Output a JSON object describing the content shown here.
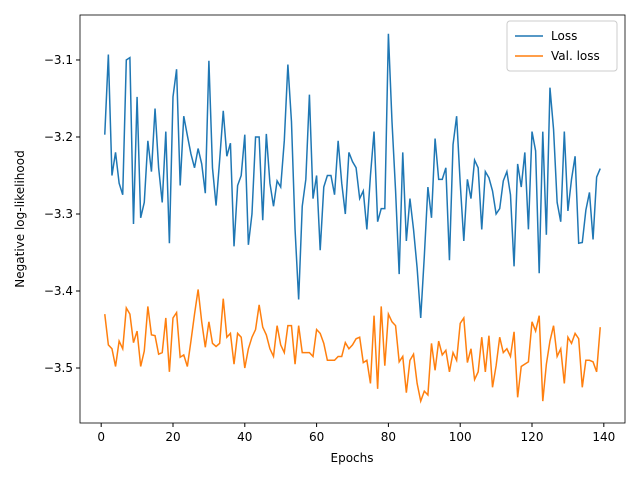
{
  "chart_data": {
    "type": "line",
    "xlabel": "Epochs",
    "ylabel": "Negative log-likelihood",
    "x": [
      1,
      2,
      3,
      4,
      5,
      6,
      7,
      8,
      9,
      10,
      11,
      12,
      13,
      14,
      15,
      16,
      17,
      18,
      19,
      20,
      21,
      22,
      23,
      24,
      25,
      26,
      27,
      28,
      29,
      30,
      31,
      32,
      33,
      34,
      35,
      36,
      37,
      38,
      39,
      40,
      41,
      42,
      43,
      44,
      45,
      46,
      47,
      48,
      49,
      50,
      51,
      52,
      53,
      54,
      55,
      56,
      57,
      58,
      59,
      60,
      61,
      62,
      63,
      64,
      65,
      66,
      67,
      68,
      69,
      70,
      71,
      72,
      73,
      74,
      75,
      76,
      77,
      78,
      79,
      80,
      81,
      82,
      83,
      84,
      85,
      86,
      87,
      88,
      89,
      90,
      91,
      92,
      93,
      94,
      95,
      96,
      97,
      98,
      99,
      100,
      101,
      102,
      103,
      104,
      105,
      106,
      107,
      108,
      109,
      110,
      111,
      112,
      113,
      114,
      115,
      116,
      117,
      118,
      119,
      120,
      121,
      122,
      123,
      124,
      125,
      126,
      127,
      128,
      129,
      130,
      131,
      132,
      133,
      134,
      135,
      136,
      137,
      138,
      139
    ],
    "series": [
      {
        "name": "Loss",
        "color": "#1f77b4",
        "values": [
          -3.197,
          -3.093,
          -3.25,
          -3.22,
          -3.26,
          -3.275,
          -3.1,
          -3.097,
          -3.313,
          -3.148,
          -3.305,
          -3.285,
          -3.205,
          -3.245,
          -3.163,
          -3.24,
          -3.285,
          -3.193,
          -3.338,
          -3.148,
          -3.112,
          -3.263,
          -3.173,
          -3.198,
          -3.222,
          -3.24,
          -3.215,
          -3.235,
          -3.273,
          -3.101,
          -3.24,
          -3.289,
          -3.23,
          -3.166,
          -3.225,
          -3.208,
          -3.342,
          -3.263,
          -3.25,
          -3.197,
          -3.34,
          -3.3,
          -3.2,
          -3.2,
          -3.308,
          -3.196,
          -3.26,
          -3.29,
          -3.257,
          -3.265,
          -3.205,
          -3.106,
          -3.18,
          -3.32,
          -3.411,
          -3.29,
          -3.255,
          -3.145,
          -3.28,
          -3.25,
          -3.347,
          -3.265,
          -3.25,
          -3.25,
          -3.275,
          -3.205,
          -3.26,
          -3.3,
          -3.22,
          -3.232,
          -3.24,
          -3.28,
          -3.27,
          -3.32,
          -3.25,
          -3.193,
          -3.31,
          -3.293,
          -3.293,
          -3.066,
          -3.18,
          -3.27,
          -3.378,
          -3.22,
          -3.335,
          -3.28,
          -3.32,
          -3.37,
          -3.435,
          -3.355,
          -3.265,
          -3.305,
          -3.202,
          -3.255,
          -3.255,
          -3.24,
          -3.36,
          -3.21,
          -3.173,
          -3.26,
          -3.335,
          -3.255,
          -3.28,
          -3.23,
          -3.24,
          -3.32,
          -3.245,
          -3.253,
          -3.27,
          -3.3,
          -3.293,
          -3.257,
          -3.245,
          -3.275,
          -3.368,
          -3.235,
          -3.265,
          -3.22,
          -3.32,
          -3.193,
          -3.218,
          -3.377,
          -3.193,
          -3.327,
          -3.136,
          -3.19,
          -3.285,
          -3.31,
          -3.193,
          -3.296,
          -3.255,
          -3.225,
          -3.338,
          -3.337,
          -3.295,
          -3.272,
          -3.333,
          -3.252,
          -3.241
        ]
      },
      {
        "name": "Val. loss",
        "color": "#ff7f0e",
        "values": [
          -3.43,
          -3.47,
          -3.475,
          -3.498,
          -3.465,
          -3.475,
          -3.422,
          -3.43,
          -3.467,
          -3.452,
          -3.498,
          -3.478,
          -3.42,
          -3.457,
          -3.458,
          -3.482,
          -3.48,
          -3.435,
          -3.505,
          -3.435,
          -3.428,
          -3.486,
          -3.483,
          -3.498,
          -3.465,
          -3.43,
          -3.398,
          -3.44,
          -3.473,
          -3.44,
          -3.468,
          -3.472,
          -3.468,
          -3.41,
          -3.46,
          -3.455,
          -3.495,
          -3.455,
          -3.46,
          -3.5,
          -3.475,
          -3.46,
          -3.45,
          -3.418,
          -3.447,
          -3.457,
          -3.475,
          -3.485,
          -3.445,
          -3.47,
          -3.48,
          -3.445,
          -3.445,
          -3.495,
          -3.445,
          -3.48,
          -3.48,
          -3.48,
          -3.485,
          -3.45,
          -3.455,
          -3.468,
          -3.49,
          -3.49,
          -3.49,
          -3.485,
          -3.485,
          -3.467,
          -3.475,
          -3.47,
          -3.462,
          -3.46,
          -3.493,
          -3.49,
          -3.52,
          -3.432,
          -3.527,
          -3.42,
          -3.497,
          -3.43,
          -3.44,
          -3.445,
          -3.492,
          -3.485,
          -3.532,
          -3.49,
          -3.482,
          -3.52,
          -3.543,
          -3.53,
          -3.535,
          -3.468,
          -3.503,
          -3.465,
          -3.483,
          -3.477,
          -3.505,
          -3.48,
          -3.49,
          -3.442,
          -3.435,
          -3.493,
          -3.475,
          -3.515,
          -3.505,
          -3.46,
          -3.505,
          -3.458,
          -3.525,
          -3.497,
          -3.46,
          -3.48,
          -3.475,
          -3.485,
          -3.453,
          -3.538,
          -3.498,
          -3.495,
          -3.492,
          -3.44,
          -3.452,
          -3.432,
          -3.543,
          -3.495,
          -3.465,
          -3.445,
          -3.485,
          -3.475,
          -3.52,
          -3.46,
          -3.468,
          -3.455,
          -3.462,
          -3.525,
          -3.49,
          -3.49,
          -3.492,
          -3.505,
          -3.447
        ]
      }
    ],
    "xlim": [
      -5.9,
      145.9
    ],
    "xticks": [
      0,
      20,
      40,
      60,
      80,
      100,
      120,
      140
    ],
    "ylim": [
      -3.5714,
      -3.0416
    ],
    "yticks": [
      {
        "value": -3.5,
        "label": "−3.5"
      },
      {
        "value": -3.4,
        "label": "−3.4"
      },
      {
        "value": -3.3,
        "label": "−3.3"
      },
      {
        "value": -3.2,
        "label": "−3.2"
      },
      {
        "value": -3.1,
        "label": "−3.1"
      }
    ],
    "legend": "upper right"
  }
}
